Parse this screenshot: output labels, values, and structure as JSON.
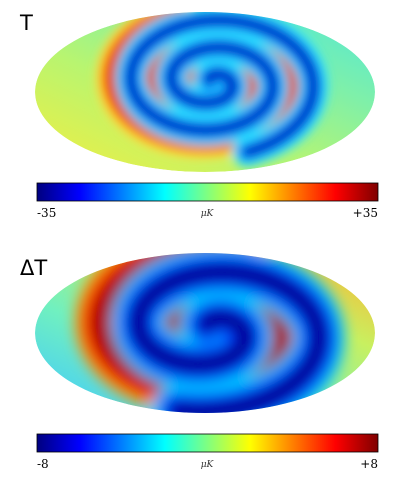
{
  "panels": [
    {
      "label": "T",
      "colorbar": {
        "min_label": "-35",
        "unit": "μK",
        "max_label": "+35"
      }
    },
    {
      "label": "ΔT",
      "colorbar": {
        "min_label": "-8",
        "unit": "μK",
        "max_label": "+8"
      }
    }
  ]
}
